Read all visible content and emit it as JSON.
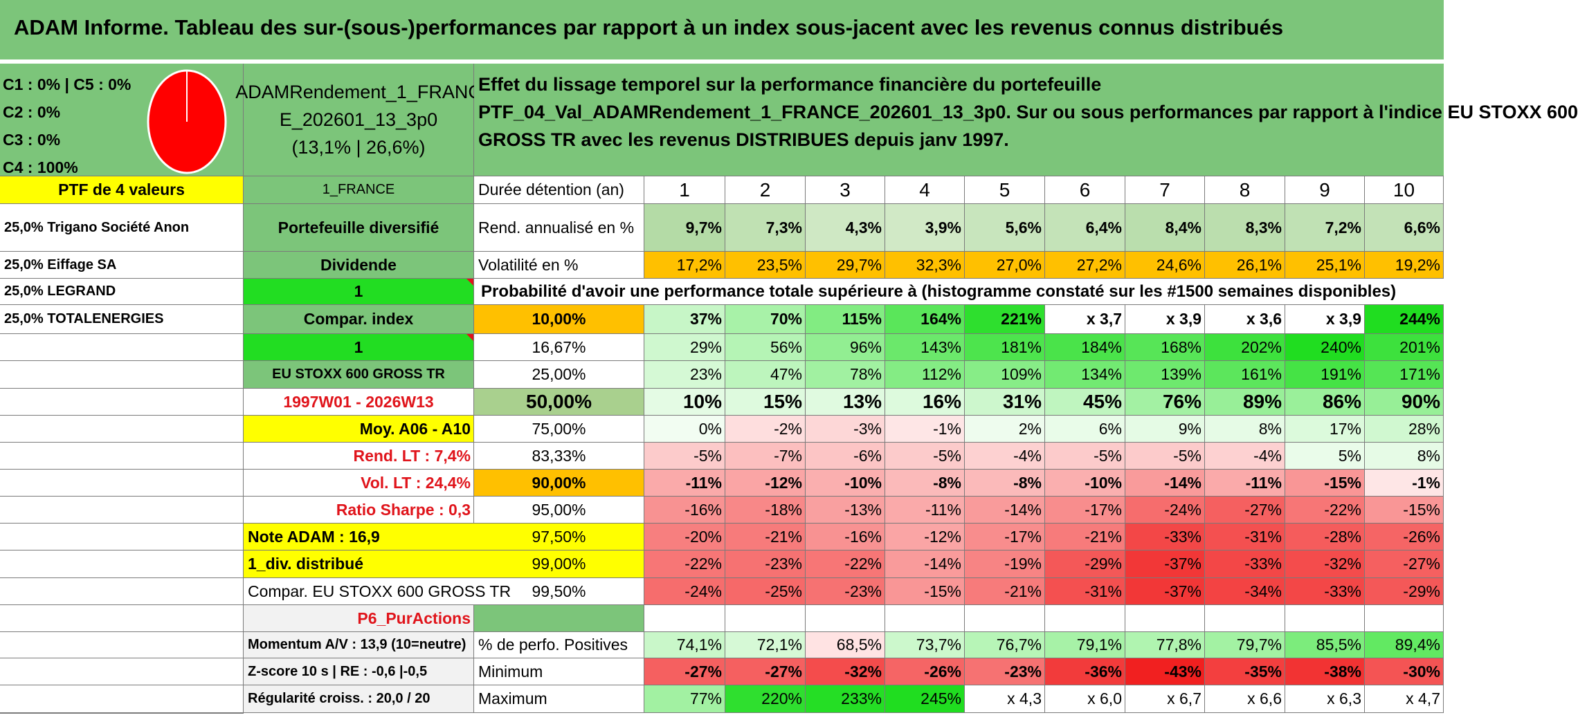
{
  "title": "ADAM Informe. Tableau des sur-(sous-)performances par rapport à un index sous-jacent avec les revenus connus distribués",
  "portfolio": {
    "c_lines": [
      "C1 : 0% | C5 : 0%",
      "C2 : 0%",
      "C3 : 0%",
      "C4 : 100%"
    ],
    "name_lines": [
      "ADAMRendement_1_FRANC",
      "E_202601_13_3p0",
      "(13,1% | 26,6%)"
    ],
    "description": [
      "Effet du lissage temporel sur la performance financière du portefeuille",
      "PTF_04_Val_ADAMRendement_1_FRANCE_202601_13_3p0. Sur ou sous performances par rapport à l'indice EU STOXX 600",
      "GROSS TR avec les revenus DISTRIBUES depuis janv 1997."
    ],
    "pie_color": "#ff0000"
  },
  "left_col": [
    "PTF de 4 valeurs",
    "25,0% Trigano Société Anon",
    "25,0% Eiffage SA",
    "25,0% LEGRAND",
    "25,0% TOTALENERGIES"
  ],
  "mid_col": {
    "country": "1_FRANCE",
    "diversified": "Portefeuille diversifié",
    "dividend": "Dividende",
    "dividend_val": "1",
    "compar_index": "Compar. index",
    "compar_index_val": "1",
    "index_name": "EU STOXX 600 GROSS TR",
    "period": "1997W01 - 2026W13",
    "moy": "Moy. A06 - A10",
    "rend_lt": "Rend. LT : 7,4%",
    "vol_lt": "Vol. LT : 24,4%",
    "sharpe": "Ratio Sharpe : 0,3",
    "note": "Note ADAM : 16,9",
    "div_distrib": "1_div. distribué",
    "compar_name": "Compar. EU STOXX 600 GROSS TR",
    "strategy": "P6_PurActions",
    "momentum": "Momentum A/V : 13,9 (10=neutre)",
    "zscore": "Z-score 10 s | RE : -0,6 |-0,5",
    "regularite": "Régularité croiss. : 20,0 / 20"
  },
  "labels": {
    "duree": "Durée détention (an)",
    "rend": "Rend. annualisé en %",
    "vol": "Volatilité en %",
    "prob_title": "Probabilité d'avoir une performance totale supérieure à (histogramme constaté sur les #1500 semaines disponibles)",
    "pct_pos": "% de perfo. Positives",
    "minimum": "Minimum",
    "maximum": "Maximum"
  },
  "years": [
    "1",
    "2",
    "3",
    "4",
    "5",
    "6",
    "7",
    "8",
    "9",
    "10"
  ],
  "rend": [
    "9,7%",
    "7,3%",
    "4,3%",
    "3,9%",
    "5,6%",
    "6,4%",
    "8,4%",
    "8,3%",
    "7,2%",
    "6,6%"
  ],
  "vol": [
    "17,2%",
    "23,5%",
    "29,7%",
    "32,3%",
    "27,0%",
    "27,2%",
    "24,6%",
    "26,1%",
    "25,1%",
    "19,2%"
  ],
  "prob_rows": [
    {
      "p": "10,00%",
      "v": [
        "37%",
        "70%",
        "115%",
        "164%",
        "221%",
        "x 3,7",
        "x 3,9",
        "x 3,6",
        "x 3,9",
        "244%"
      ]
    },
    {
      "p": "16,67%",
      "v": [
        "29%",
        "56%",
        "96%",
        "143%",
        "181%",
        "184%",
        "168%",
        "202%",
        "240%",
        "201%"
      ]
    },
    {
      "p": "25,00%",
      "v": [
        "23%",
        "47%",
        "78%",
        "112%",
        "109%",
        "134%",
        "139%",
        "161%",
        "191%",
        "171%"
      ]
    },
    {
      "p": "50,00%",
      "v": [
        "10%",
        "15%",
        "13%",
        "16%",
        "31%",
        "45%",
        "76%",
        "89%",
        "86%",
        "90%"
      ]
    },
    {
      "p": "75,00%",
      "v": [
        "0%",
        "-2%",
        "-3%",
        "-1%",
        "2%",
        "6%",
        "9%",
        "8%",
        "17%",
        "28%"
      ]
    },
    {
      "p": "83,33%",
      "v": [
        "-5%",
        "-7%",
        "-6%",
        "-5%",
        "-4%",
        "-5%",
        "-5%",
        "-4%",
        "5%",
        "8%"
      ]
    },
    {
      "p": "90,00%",
      "v": [
        "-11%",
        "-12%",
        "-10%",
        "-8%",
        "-8%",
        "-10%",
        "-14%",
        "-11%",
        "-15%",
        "-1%"
      ]
    },
    {
      "p": "95,00%",
      "v": [
        "-16%",
        "-18%",
        "-13%",
        "-11%",
        "-14%",
        "-17%",
        "-24%",
        "-27%",
        "-22%",
        "-15%"
      ]
    },
    {
      "p": "97,50%",
      "v": [
        "-20%",
        "-21%",
        "-16%",
        "-12%",
        "-17%",
        "-21%",
        "-33%",
        "-31%",
        "-28%",
        "-26%"
      ]
    },
    {
      "p": "99,00%",
      "v": [
        "-22%",
        "-23%",
        "-22%",
        "-14%",
        "-19%",
        "-29%",
        "-37%",
        "-33%",
        "-32%",
        "-27%"
      ]
    },
    {
      "p": "99,50%",
      "v": [
        "-24%",
        "-25%",
        "-23%",
        "-15%",
        "-21%",
        "-31%",
        "-37%",
        "-34%",
        "-33%",
        "-29%"
      ]
    }
  ],
  "pct_pos": [
    "74,1%",
    "72,1%",
    "68,5%",
    "73,7%",
    "76,7%",
    "79,1%",
    "77,8%",
    "79,7%",
    "85,5%",
    "89,4%"
  ],
  "minimum": [
    "-27%",
    "-27%",
    "-32%",
    "-26%",
    "-23%",
    "-36%",
    "-43%",
    "-35%",
    "-38%",
    "-30%"
  ],
  "maximum": [
    "77%",
    "220%",
    "233%",
    "245%",
    "x 4,3",
    "x 6,0",
    "x 6,7",
    "x 6,6",
    "x 6,3",
    "x 4,7"
  ],
  "colors": {
    "green_header": "#7cc57a",
    "yellow": "#ffff00",
    "bright_green": "#22dd22",
    "orange": "#ffc000",
    "red_text": "#e0141b",
    "grey": "#f2f2f2"
  }
}
